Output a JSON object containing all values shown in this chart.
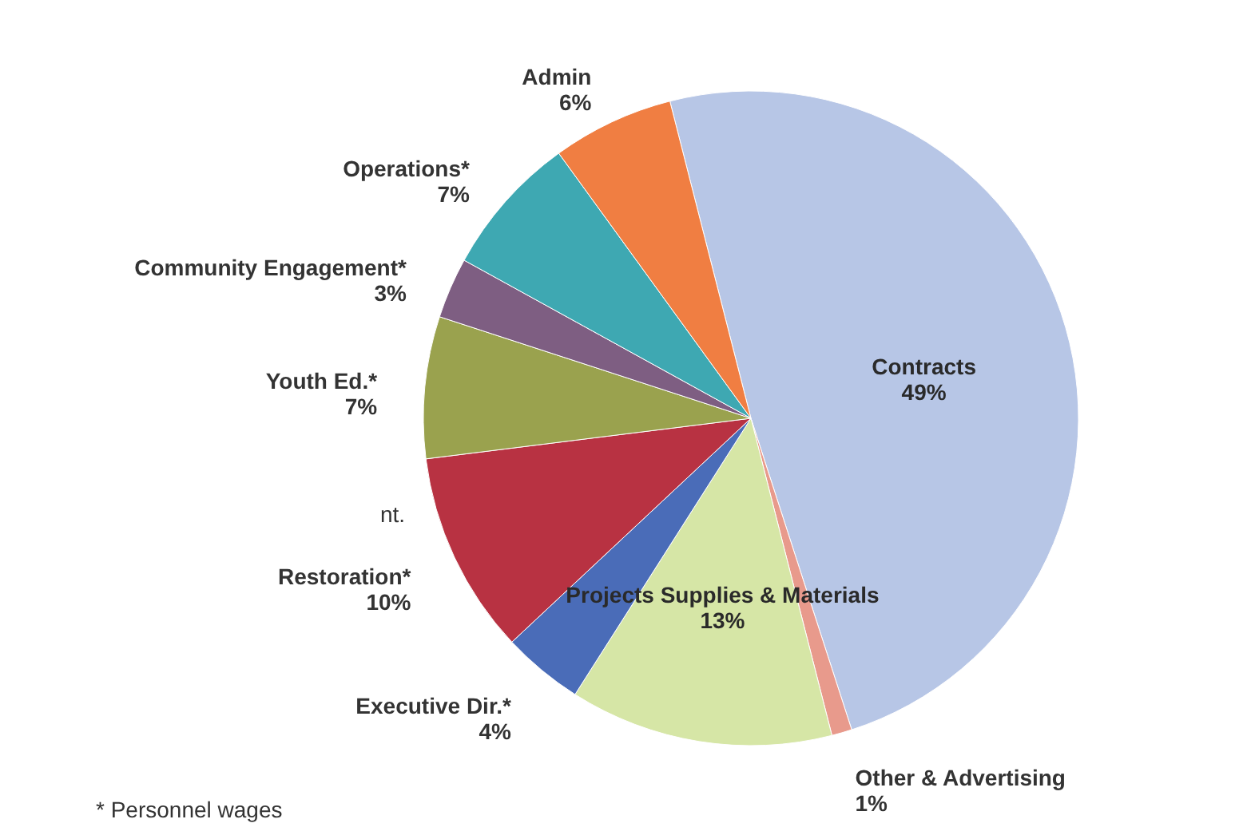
{
  "chart_data": {
    "type": "pie",
    "categories": [
      "Contracts",
      "Other & Advertising",
      "Projects Supplies & Materials",
      "Executive Dir.*",
      "Restoration*",
      "Youth Ed.*",
      "Community Engagement*",
      "Operations*",
      "Admin"
    ],
    "values": [
      49,
      1,
      13,
      4,
      10,
      7,
      3,
      7,
      6
    ],
    "value_labels": [
      "49%",
      "1%",
      "13%",
      "4%",
      "10%",
      "7%",
      "3%",
      "7%",
      "6%"
    ],
    "colors": [
      "#b7c6e6",
      "#e89a8c",
      "#d6e6a6",
      "#4a6cb8",
      "#b83242",
      "#9aa24e",
      "#7e5e82",
      "#3ea8b2",
      "#f07e42"
    ],
    "annotations": [
      "* Personnel wages",
      "nt."
    ]
  }
}
